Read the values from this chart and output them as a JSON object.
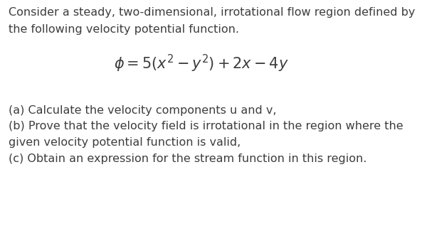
{
  "background_color": "#ffffff",
  "text_color": "#3d3d3d",
  "line1": "Consider a steady, two-dimensional, irrotational flow region defined by",
  "line2": "the following velocity potential function.",
  "equation": "$\\phi = 5(x^2 - y^2) + 2x - 4y$",
  "part_a": "(a) Calculate the velocity components u and v,",
  "part_b1": "(b) Prove that the velocity field is irrotational in the region where the",
  "part_b2": "given velocity potential function is valid,",
  "part_c": "(c) Obtain an expression for the stream function in this region.",
  "figwidth": 5.93,
  "figheight": 3.18,
  "dpi": 100,
  "body_fontsize": 11.5,
  "eq_fontsize": 15.0
}
